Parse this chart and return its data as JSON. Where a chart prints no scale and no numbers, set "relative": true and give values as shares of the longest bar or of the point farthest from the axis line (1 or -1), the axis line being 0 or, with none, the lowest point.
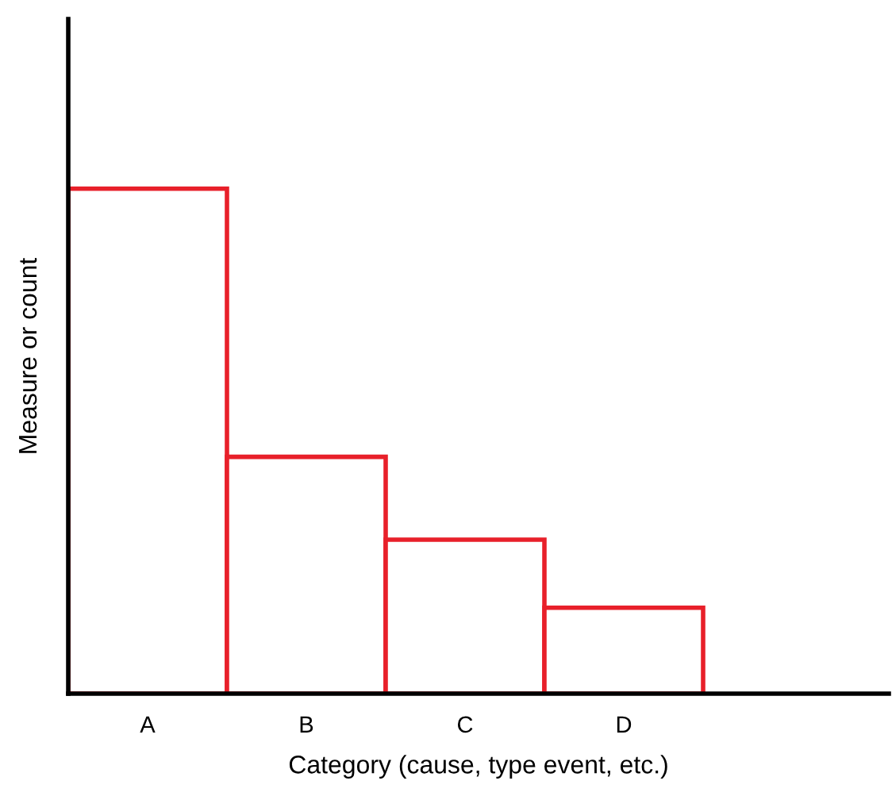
{
  "chart_data": {
    "type": "bar",
    "relative": true,
    "xlabel": "Category (cause, type event, etc.)",
    "ylabel": "Measure or count",
    "categories": [
      "A",
      "B",
      "C",
      "D"
    ],
    "values": [
      1,
      0.469,
      0.305,
      0.17
    ],
    "color": "#e8202a",
    "grid": false,
    "legend": false
  }
}
